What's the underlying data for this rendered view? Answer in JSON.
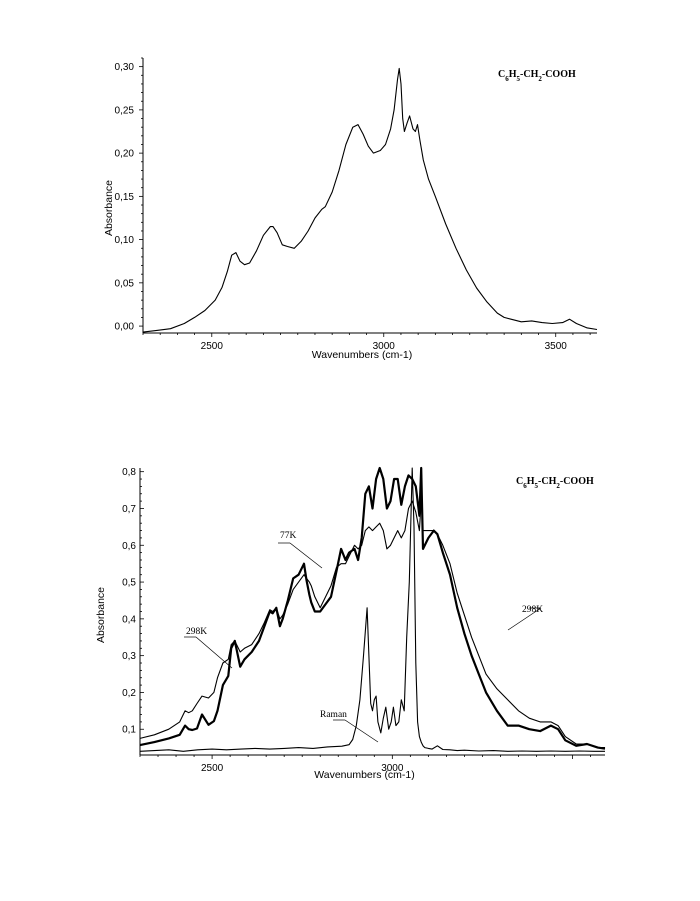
{
  "chart_data": [
    {
      "type": "line",
      "title": "C6H5-CH2-COOH",
      "title_parts": [
        "C",
        "6",
        "H",
        "5",
        "-CH",
        "2",
        "-COOH"
      ],
      "xlabel": "Wavenumbers (cm-1)",
      "ylabel": "Absorbance",
      "xlim": [
        2300,
        3620
      ],
      "ylim": [
        -0.008,
        0.31
      ],
      "xticks": [
        2500,
        3000,
        3500
      ],
      "xtick_labels": [
        "2500",
        "3000",
        "3500"
      ],
      "yticks": [
        0.0,
        0.05,
        0.1,
        0.15,
        0.2,
        0.25,
        0.3
      ],
      "ytick_labels": [
        "0,00",
        "0,05",
        "0,10",
        "0,15",
        "0,20",
        "0,25",
        "0,30"
      ],
      "grid": false,
      "series": [
        {
          "x": [
            2300,
            2340,
            2380,
            2420,
            2450,
            2480,
            2510,
            2530,
            2545,
            2558,
            2570,
            2582,
            2595,
            2610,
            2630,
            2650,
            2670,
            2678,
            2690,
            2705,
            2720,
            2740,
            2760,
            2780,
            2800,
            2820,
            2830,
            2850,
            2870,
            2890,
            2910,
            2925,
            2940,
            2955,
            2970,
            2990,
            3005,
            3020,
            3030,
            3040,
            3045,
            3050,
            3055,
            3060,
            3068,
            3075,
            3085,
            3092,
            3098,
            3105,
            3115,
            3130,
            3150,
            3180,
            3210,
            3240,
            3270,
            3300,
            3330,
            3350,
            3370,
            3400,
            3430,
            3460,
            3490,
            3520,
            3540,
            3560,
            3590,
            3620
          ],
          "y": [
            -0.007,
            -0.005,
            -0.003,
            0.003,
            0.01,
            0.018,
            0.03,
            0.045,
            0.063,
            0.082,
            0.085,
            0.075,
            0.071,
            0.073,
            0.087,
            0.105,
            0.115,
            0.115,
            0.108,
            0.094,
            0.092,
            0.09,
            0.098,
            0.11,
            0.125,
            0.135,
            0.138,
            0.155,
            0.18,
            0.21,
            0.23,
            0.233,
            0.222,
            0.208,
            0.2,
            0.203,
            0.21,
            0.228,
            0.25,
            0.285,
            0.298,
            0.28,
            0.24,
            0.225,
            0.235,
            0.243,
            0.228,
            0.225,
            0.233,
            0.215,
            0.192,
            0.17,
            0.15,
            0.118,
            0.09,
            0.065,
            0.044,
            0.028,
            0.015,
            0.01,
            0.008,
            0.005,
            0.006,
            0.004,
            0.003,
            0.004,
            0.008,
            0.003,
            -0.002,
            -0.004
          ]
        }
      ]
    },
    {
      "type": "line",
      "title": "C6H5-CH2-COOH",
      "title_parts": [
        "C",
        "6",
        "H",
        "5",
        "-CH",
        "2",
        "-COOH"
      ],
      "xlabel": "Wavenumbers (cm-1)",
      "ylabel": "Absorbance",
      "xlim": [
        2300,
        3590
      ],
      "ylim": [
        0.03,
        0.81
      ],
      "xticks": [
        2500,
        3000
      ],
      "xtick_labels": [
        "2500",
        "3000"
      ],
      "yticks": [
        0.1,
        0.2,
        0.3,
        0.4,
        0.5,
        0.6,
        0.7,
        0.8
      ],
      "ytick_labels": [
        "0,1",
        "0,2",
        "0,3",
        "0,4",
        "0,5",
        "0,6",
        "0,7",
        "0,8"
      ],
      "grid": false,
      "annotations": [
        {
          "text": "298K",
          "x": 2531,
          "y": 0.284
        },
        {
          "text": "77K",
          "x": 2740,
          "y": 0.505
        },
        {
          "text": "298K",
          "x": 3250,
          "y": 0.395
        },
        {
          "text": "Raman",
          "x": 2882,
          "y": 0.057
        }
      ],
      "series": [
        {
          "label_ref": "77K",
          "stroke": "thick",
          "x": [
            2300,
            2340,
            2380,
            2410,
            2425,
            2435,
            2445,
            2458,
            2472,
            2490,
            2505,
            2515,
            2530,
            2545,
            2553,
            2563,
            2578,
            2590,
            2610,
            2630,
            2645,
            2660,
            2668,
            2678,
            2688,
            2696,
            2710,
            2725,
            2740,
            2755,
            2762,
            2770,
            2775,
            2785,
            2800,
            2815,
            2830,
            2845,
            2858,
            2870,
            2880,
            2895,
            2905,
            2915,
            2925,
            2935,
            2945,
            2955,
            2965,
            2975,
            2985,
            2995,
            3005,
            3015,
            3025,
            3035,
            3045,
            3055,
            3065,
            3075,
            3080,
            3085,
            3100,
            3115,
            3125,
            3140,
            3160,
            3180,
            3200,
            3220,
            3240,
            3260,
            3290,
            3320,
            3350,
            3380,
            3410,
            3440,
            3460,
            3480,
            3510,
            3540,
            3570,
            3590
          ],
          "y": [
            0.057,
            0.065,
            0.075,
            0.085,
            0.11,
            0.1,
            0.098,
            0.102,
            0.14,
            0.112,
            0.122,
            0.15,
            0.22,
            0.245,
            0.32,
            0.34,
            0.27,
            0.29,
            0.31,
            0.34,
            0.38,
            0.42,
            0.415,
            0.43,
            0.38,
            0.4,
            0.45,
            0.51,
            0.52,
            0.55,
            0.505,
            0.465,
            0.445,
            0.42,
            0.42,
            0.44,
            0.46,
            0.53,
            0.59,
            0.56,
            0.58,
            0.59,
            0.56,
            0.62,
            0.74,
            0.76,
            0.7,
            0.78,
            0.81,
            0.78,
            0.7,
            0.72,
            0.78,
            0.78,
            0.71,
            0.76,
            0.79,
            0.78,
            0.76,
            0.68,
            0.81,
            0.59,
            0.62,
            0.64,
            0.63,
            0.58,
            0.52,
            0.43,
            0.36,
            0.3,
            0.25,
            0.2,
            0.15,
            0.11,
            0.11,
            0.1,
            0.095,
            0.11,
            0.1,
            0.07,
            0.055,
            0.06,
            0.05,
            0.047
          ]
        },
        {
          "label_ref": "298K",
          "stroke": "thin",
          "x": [
            2300,
            2340,
            2380,
            2410,
            2425,
            2435,
            2445,
            2458,
            2472,
            2490,
            2505,
            2515,
            2530,
            2545,
            2553,
            2563,
            2578,
            2590,
            2610,
            2630,
            2645,
            2660,
            2668,
            2678,
            2688,
            2696,
            2710,
            2725,
            2740,
            2755,
            2762,
            2770,
            2775,
            2785,
            2800,
            2815,
            2830,
            2845,
            2858,
            2870,
            2880,
            2895,
            2905,
            2915,
            2925,
            2935,
            2945,
            2955,
            2965,
            2975,
            2985,
            2995,
            3005,
            3015,
            3025,
            3035,
            3045,
            3055,
            3065,
            3075,
            3080,
            3085,
            3100,
            3115,
            3125,
            3140,
            3160,
            3180,
            3200,
            3220,
            3240,
            3260,
            3290,
            3320,
            3350,
            3380,
            3410,
            3440,
            3460,
            3480,
            3510,
            3540,
            3570,
            3590
          ],
          "y": [
            0.075,
            0.085,
            0.1,
            0.12,
            0.15,
            0.145,
            0.15,
            0.17,
            0.19,
            0.185,
            0.2,
            0.24,
            0.28,
            0.29,
            0.33,
            0.34,
            0.31,
            0.32,
            0.33,
            0.36,
            0.39,
            0.425,
            0.42,
            0.43,
            0.4,
            0.41,
            0.44,
            0.48,
            0.5,
            0.52,
            0.51,
            0.5,
            0.49,
            0.46,
            0.43,
            0.46,
            0.49,
            0.54,
            0.55,
            0.55,
            0.57,
            0.6,
            0.59,
            0.6,
            0.64,
            0.65,
            0.64,
            0.65,
            0.66,
            0.64,
            0.59,
            0.6,
            0.62,
            0.64,
            0.62,
            0.64,
            0.7,
            0.72,
            0.69,
            0.64,
            0.72,
            0.64,
            0.64,
            0.64,
            0.63,
            0.6,
            0.55,
            0.47,
            0.41,
            0.35,
            0.3,
            0.25,
            0.21,
            0.18,
            0.15,
            0.13,
            0.12,
            0.12,
            0.11,
            0.08,
            0.06,
            0.06,
            0.05,
            0.05
          ]
        },
        {
          "label_ref": "Raman",
          "stroke": "thin",
          "x": [
            2300,
            2340,
            2380,
            2420,
            2460,
            2500,
            2540,
            2580,
            2620,
            2660,
            2700,
            2740,
            2780,
            2820,
            2860,
            2880,
            2890,
            2900,
            2910,
            2920,
            2930,
            2935,
            2940,
            2945,
            2950,
            2955,
            2960,
            2968,
            2975,
            2982,
            2990,
            2997,
            3003,
            3010,
            3018,
            3025,
            3033,
            3040,
            3047,
            3055,
            3060,
            3065,
            3070,
            3075,
            3080,
            3085,
            3090,
            3100,
            3110,
            3125,
            3140,
            3160,
            3180,
            3200,
            3240,
            3280,
            3320,
            3360,
            3400,
            3440,
            3480,
            3520,
            3560,
            3590
          ],
          "y": [
            0.04,
            0.042,
            0.044,
            0.04,
            0.044,
            0.046,
            0.044,
            0.046,
            0.048,
            0.046,
            0.048,
            0.05,
            0.048,
            0.052,
            0.054,
            0.058,
            0.072,
            0.11,
            0.18,
            0.3,
            0.43,
            0.3,
            0.17,
            0.15,
            0.18,
            0.19,
            0.12,
            0.09,
            0.13,
            0.16,
            0.1,
            0.12,
            0.16,
            0.11,
            0.12,
            0.18,
            0.15,
            0.35,
            0.5,
            0.82,
            0.65,
            0.28,
            0.12,
            0.08,
            0.065,
            0.055,
            0.05,
            0.048,
            0.046,
            0.055,
            0.045,
            0.044,
            0.042,
            0.043,
            0.041,
            0.042,
            0.04,
            0.041,
            0.04,
            0.041,
            0.04,
            0.041,
            0.04,
            0.04
          ]
        }
      ]
    }
  ]
}
